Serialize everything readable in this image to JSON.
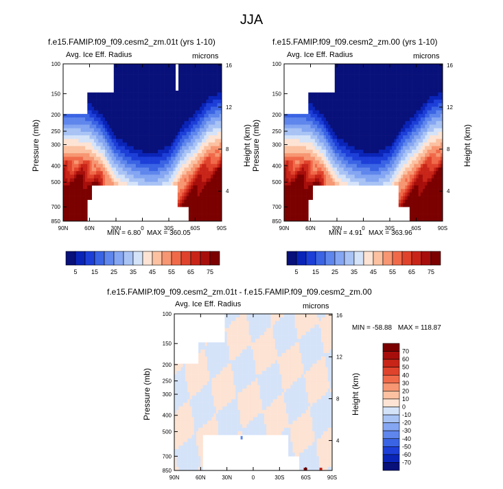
{
  "figure": {
    "title": "JJA",
    "variable_label": "Avg. Ice Eff. Radius",
    "units_label": "microns"
  },
  "colors": {
    "blue_scale": [
      "#08107a",
      "#0a24b8",
      "#1d3fd8",
      "#3a64e4",
      "#5f86ec",
      "#85a6f2",
      "#a9c3f5",
      "#d5e3f9"
    ],
    "red_scale": [
      "#fde3d3",
      "#fbc1a1",
      "#f79672",
      "#f06a4a",
      "#e0432c",
      "#c82518",
      "#a70e0b",
      "#7b0000"
    ],
    "diff_scale": [
      "#08107a",
      "#0a24b8",
      "#1d3fd8",
      "#3a64e4",
      "#5f86ec",
      "#85a6f2",
      "#a9c3f5",
      "#d5e3f9",
      "#fde3d3",
      "#fbc1a1",
      "#f79672",
      "#f06a4a",
      "#e0432c",
      "#c82518",
      "#a70e0b",
      "#7b0000"
    ]
  },
  "chart_data": [
    {
      "type": "heatmap",
      "id": "panel-a",
      "title": "f.e15.FAMIP.f09_f09.cesm2_zm.01t (yrs 1-10)",
      "xlabel": "",
      "ylabel": "Pressure (mb)",
      "y2label": "Height (km)",
      "x_ticks": [
        "90N",
        "60N",
        "30N",
        "0",
        "30S",
        "60S",
        "90S"
      ],
      "y_ticks": [
        "100",
        "150",
        "200",
        "250",
        "300",
        "400",
        "500",
        "700",
        "850"
      ],
      "y2_ticks": [
        "16",
        "12",
        "8",
        "4"
      ],
      "min_label": "MIN =",
      "min": "6.80",
      "max_label": "MAX =",
      "max": "360.05",
      "colorbar_levels": [
        "5",
        "15",
        "25",
        "35",
        "45",
        "55",
        "65",
        "75"
      ],
      "profile": {
        "lat": [
          -90,
          -75,
          -60,
          -45,
          -30,
          -15,
          0,
          15,
          30,
          45,
          60,
          75,
          90
        ],
        "tropopause_p": [
          240,
          260,
          320,
          380,
          500,
          550,
          540,
          500,
          440,
          330,
          280,
          270,
          270
        ]
      }
    },
    {
      "type": "heatmap",
      "id": "panel-b",
      "title": "f.e15.FAMIP.f09_f09.cesm2_zm.00 (yrs 1-10)",
      "xlabel": "",
      "ylabel": "Pressure (mb)",
      "y2label": "Height (km)",
      "x_ticks": [
        "90N",
        "60N",
        "30N",
        "0",
        "30S",
        "60S",
        "90S"
      ],
      "y_ticks": [
        "100",
        "150",
        "200",
        "250",
        "300",
        "400",
        "500",
        "700",
        "850"
      ],
      "y2_ticks": [
        "16",
        "12",
        "8",
        "4"
      ],
      "min_label": "MIN =",
      "min": "4.91",
      "max_label": "MAX =",
      "max": "363.96",
      "colorbar_levels": [
        "5",
        "15",
        "25",
        "35",
        "45",
        "55",
        "65",
        "75"
      ],
      "profile": {
        "lat": [
          -90,
          -75,
          -60,
          -45,
          -30,
          -15,
          0,
          15,
          30,
          45,
          60,
          75,
          90
        ],
        "tropopause_p": [
          240,
          260,
          320,
          380,
          500,
          550,
          540,
          500,
          440,
          330,
          280,
          270,
          270
        ]
      }
    },
    {
      "type": "heatmap",
      "id": "panel-c",
      "title": "f.e15.FAMIP.f09_f09.cesm2_zm.01t - f.e15.FAMIP.f09_f09.cesm2_zm.00",
      "xlabel": "",
      "ylabel": "Pressure (mb)",
      "y2label": "Height (km)",
      "x_ticks": [
        "90N",
        "60N",
        "30N",
        "0",
        "30S",
        "60S",
        "90S"
      ],
      "y_ticks": [
        "100",
        "150",
        "200",
        "250",
        "300",
        "400",
        "500",
        "700",
        "850"
      ],
      "y2_ticks": [
        "16",
        "12",
        "8",
        "4"
      ],
      "min_label": "MIN =",
      "min": "-58.88",
      "max_label": "MAX =",
      "max": "118.87",
      "colorbar_levels": [
        "70",
        "60",
        "50",
        "40",
        "30",
        "20",
        "10",
        "0",
        "-10",
        "-20",
        "-30",
        "-40",
        "-50",
        "-60",
        "-70"
      ]
    }
  ]
}
